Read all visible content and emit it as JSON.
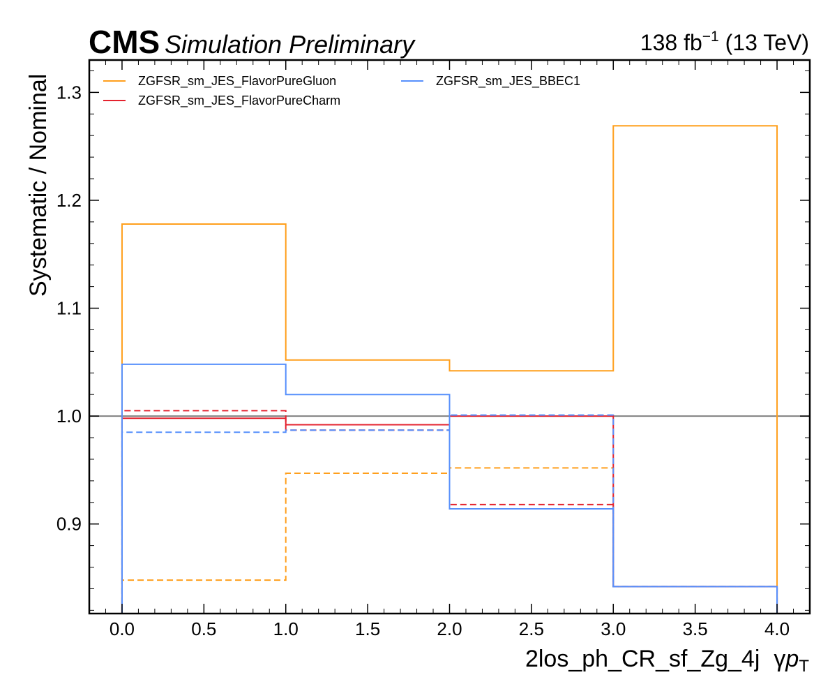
{
  "header": {
    "cms": "CMS",
    "extra": "Simulation Preliminary",
    "lumi_value": "138 fb",
    "lumi_exp": "−1",
    "lumi_energy": " (13 TeV)"
  },
  "chart_data": {
    "type": "line",
    "drawstyle": "steps",
    "xlabel_main": "2los_ph_CR_sf_Zg_4j",
    "xlabel_gamma": "γ",
    "xlabel_p": "p",
    "xlabel_sub": "T",
    "ylabel": "Systematic / Nominal",
    "xlim": [
      -0.2,
      4.2
    ],
    "ylim": [
      0.817,
      1.33
    ],
    "bin_edges": [
      0,
      1,
      2,
      3,
      4
    ],
    "x_ticks": [
      "0.0",
      "0.5",
      "1.0",
      "1.5",
      "2.0",
      "2.5",
      "3.0",
      "3.5",
      "4.0"
    ],
    "y_ticks": [
      "0.9",
      "1.0",
      "1.1",
      "1.2",
      "1.3"
    ],
    "reference_line": 1.0,
    "legend_position": "top-left",
    "series": [
      {
        "name": "ZGFSR_sm_JES_FlavorPureGluon",
        "variation": "up",
        "values": [
          1.178,
          1.052,
          1.042,
          1.269
        ],
        "color": "#ff9f1c",
        "style": "solid"
      },
      {
        "name": "ZGFSR_sm_JES_FlavorPureGluon",
        "variation": "down",
        "values": [
          0.848,
          0.947,
          0.952,
          0.842
        ],
        "color": "#ff9f1c",
        "style": "dashed"
      },
      {
        "name": "ZGFSR_sm_JES_FlavorPureCharm",
        "variation": "up",
        "values": [
          0.998,
          0.992,
          1.0,
          0.842
        ],
        "color": "#e4222e",
        "style": "solid"
      },
      {
        "name": "ZGFSR_sm_JES_FlavorPureCharm",
        "variation": "down",
        "values": [
          1.005,
          0.987,
          0.918,
          0.842
        ],
        "color": "#e4222e",
        "style": "dashed"
      },
      {
        "name": "ZGFSR_sm_JES_BBEC1",
        "variation": "up",
        "values": [
          1.048,
          1.02,
          0.914,
          0.842
        ],
        "color": "#5790fc",
        "style": "solid"
      },
      {
        "name": "ZGFSR_sm_JES_BBEC1",
        "variation": "down",
        "values": [
          0.985,
          0.987,
          1.001,
          0.842
        ],
        "color": "#5790fc",
        "style": "dashed"
      }
    ],
    "legend": [
      {
        "label": "ZGFSR_sm_JES_FlavorPureGluon",
        "color": "#ff9f1c"
      },
      {
        "label": "ZGFSR_sm_JES_FlavorPureCharm",
        "color": "#e4222e"
      },
      {
        "label": "ZGFSR_sm_JES_BBEC1",
        "color": "#5790fc"
      }
    ]
  }
}
